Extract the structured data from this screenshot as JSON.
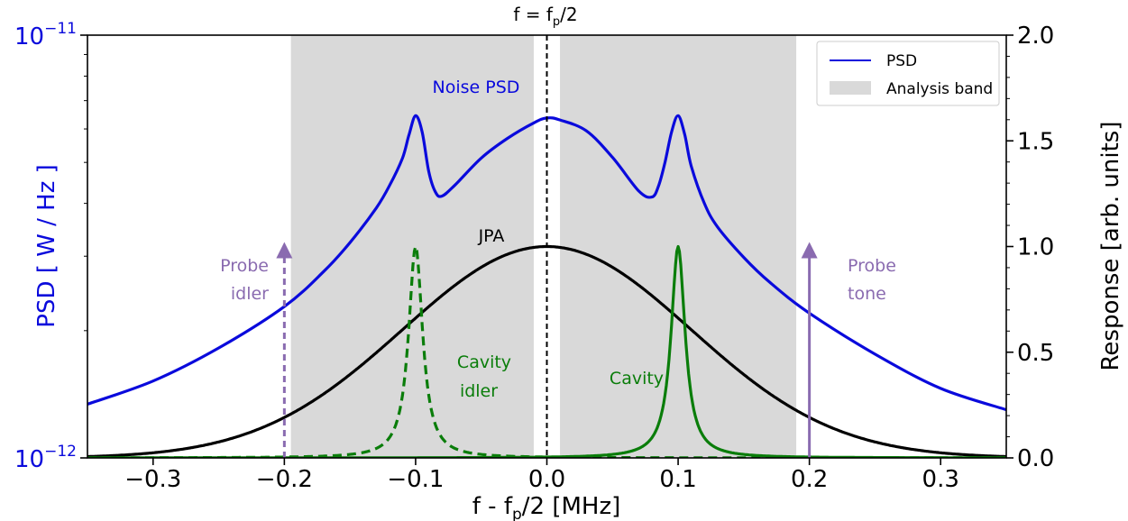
{
  "chart_data": {
    "type": "line",
    "title": "f = f",
    "title_sub": "p",
    "title_end": "/2",
    "xlabel": {
      "pre": "f - f",
      "sub": "p",
      "post": "/2 [MHz]"
    },
    "ylabel_left": "PSD [ W / Hz ]",
    "ylabel_right": "Response [arb. units]",
    "xlim": [
      -0.35,
      0.35
    ],
    "ylim_left": [
      1e-12,
      1e-11
    ],
    "yscale_left": "log",
    "ylim_right": [
      0.0,
      2.0
    ],
    "x_ticks": [
      -0.3,
      -0.2,
      -0.1,
      0.0,
      0.1,
      0.2,
      0.3
    ],
    "x_tick_labels": [
      "−0.3",
      "−0.2",
      "−0.1",
      "0.0",
      "0.1",
      "0.2",
      "0.3"
    ],
    "left_tick_labels": [
      {
        "base": "10",
        "exp": "−11",
        "value": 1e-11
      },
      {
        "base": "10",
        "exp": "−12",
        "value": 1e-12
      }
    ],
    "right_ticks": [
      0.0,
      0.5,
      1.0,
      1.5,
      2.0
    ],
    "right_tick_labels": [
      "0.0",
      "0.5",
      "1.0",
      "1.5",
      "2.0"
    ],
    "analysis_bands": [
      [
        -0.195,
        -0.01
      ],
      [
        0.01,
        0.19
      ]
    ],
    "center_line_x": 0.0,
    "series": [
      {
        "name": "PSD",
        "axis": "left",
        "color": "#0a0adc",
        "style": "solid",
        "x": [
          -0.35,
          -0.3,
          -0.25,
          -0.2,
          -0.17,
          -0.15,
          -0.13,
          -0.12,
          -0.11,
          -0.105,
          -0.1,
          -0.095,
          -0.09,
          -0.085,
          -0.08,
          -0.07,
          -0.05,
          -0.03,
          -0.01,
          0.0,
          0.01,
          0.03,
          0.05,
          0.07,
          0.08,
          0.085,
          0.09,
          0.095,
          0.1,
          0.105,
          0.11,
          0.12,
          0.13,
          0.15,
          0.17,
          0.2,
          0.25,
          0.3,
          0.35
        ],
        "y": [
          1.34e-12,
          1.52e-12,
          1.82e-12,
          2.28e-12,
          2.76e-12,
          3.23e-12,
          3.9e-12,
          4.4e-12,
          5.12e-12,
          5.82e-12,
          6.45e-12,
          5.9e-12,
          4.76e-12,
          4.26e-12,
          4.16e-12,
          4.42e-12,
          5.12e-12,
          5.7e-12,
          6.2e-12,
          6.37e-12,
          6.3e-12,
          5.94e-12,
          5.14e-12,
          4.28e-12,
          4.14e-12,
          4.39e-12,
          5e-12,
          5.9e-12,
          6.45e-12,
          5.82e-12,
          4.9e-12,
          4e-12,
          3.52e-12,
          2.98e-12,
          2.6e-12,
          2.2e-12,
          1.76e-12,
          1.46e-12,
          1.3e-12
        ]
      },
      {
        "name": "",
        "axis": "right",
        "color": "#000000",
        "style": "solid",
        "gaussian": {
          "amplitude": 1.0,
          "center": 0.0,
          "sigma": 0.11,
          "floor": 0.0
        }
      },
      {
        "name": "",
        "axis": "right",
        "color": "#0a7d0a",
        "style": "solid",
        "lorentzian": {
          "amplitude": 1.0,
          "center": 0.1,
          "hwhm": 0.0065
        }
      },
      {
        "name": "",
        "axis": "right",
        "color": "#0a7d0a",
        "style": "dashed",
        "lorentzian": {
          "amplitude": 1.0,
          "center": -0.1,
          "hwhm": 0.0065
        }
      }
    ],
    "arrows": [
      {
        "x": -0.2,
        "from": 0.0,
        "to": 1.0,
        "style": "dashed",
        "color": "#8a6bb0"
      },
      {
        "x": 0.2,
        "from": 0.0,
        "to": 1.0,
        "style": "solid",
        "color": "#8a6bb0"
      }
    ],
    "annotations": {
      "noise_psd": "Noise PSD",
      "jpa": "JPA",
      "cavity_idler_1": "Cavity",
      "cavity_idler_2": "idler",
      "cavity": "Cavity",
      "probe_idler_1": "Probe",
      "probe_idler_2": "idler",
      "probe_tone_1": "Probe",
      "probe_tone_2": "tone"
    },
    "legend": {
      "placement": "top-right",
      "entries": [
        {
          "label": "PSD",
          "kind": "line",
          "color": "#0a0adc"
        },
        {
          "label": "Analysis band",
          "kind": "patch",
          "color": "#d9d9d9"
        }
      ]
    },
    "colors": {
      "band": "#d9d9d9",
      "left_axis_text": "#0a0adc",
      "annotation_purple": "#8a6bb0",
      "annotation_green": "#0a7d0a"
    }
  }
}
